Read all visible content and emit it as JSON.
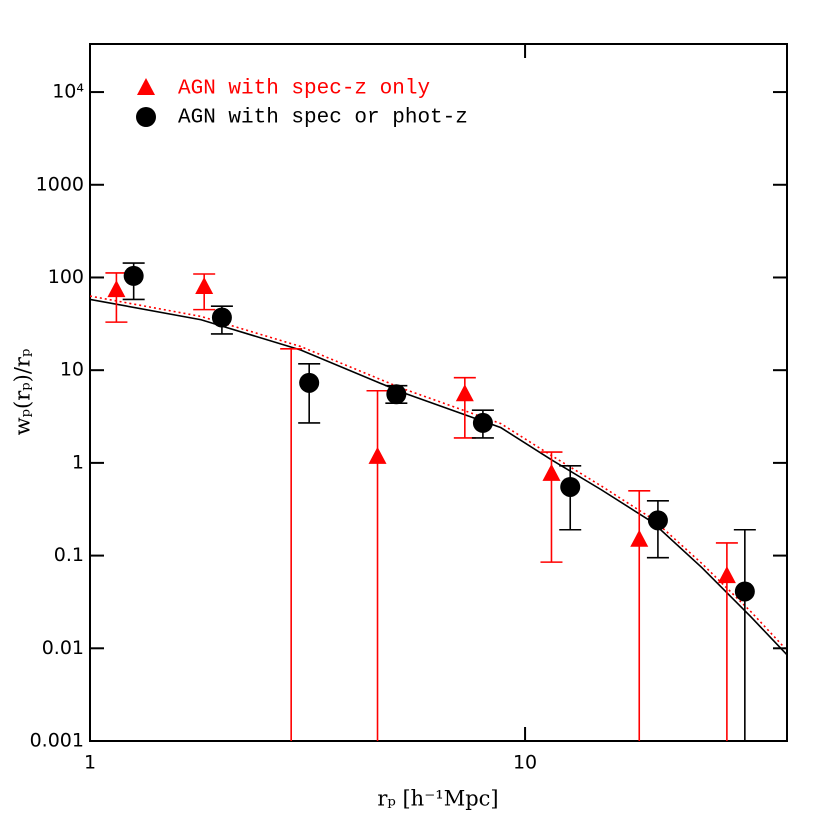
{
  "chart_data": {
    "type": "scatter",
    "xlabel": "rₚ [h⁻¹Mpc]",
    "ylabel": "wₚ(rₚ)/rₚ",
    "xscale": "log",
    "yscale": "log",
    "xlim": [
      1,
      40
    ],
    "ylim": [
      0.001,
      33000
    ],
    "xticks": [
      1,
      10
    ],
    "yticks": [
      0.001,
      0.01,
      0.1,
      1,
      10,
      100,
      1000,
      {
        "value": 10000,
        "label": "10⁴"
      }
    ],
    "legend": "upper left",
    "series": [
      {
        "name": "AGN with spec-z only",
        "color": "#ff0000",
        "marker": "triangle",
        "x": [
          1.15,
          1.83,
          2.9,
          4.58,
          7.27,
          11.5,
          18.3,
          29.1
        ],
        "values": [
          73,
          79,
          null,
          1.16,
          5.5,
          0.76,
          0.148,
          0.06
        ],
        "lower": [
          33,
          45,
          null,
          null,
          1.86,
          0.085,
          null,
          null
        ],
        "upper": [
          112,
          109,
          17,
          6,
          8.3,
          1.31,
          0.5,
          0.137
        ]
      },
      {
        "name": "AGN with spec or phot-z",
        "color": "#000000",
        "marker": "circle",
        "x": [
          1.26,
          2.01,
          3.19,
          5.06,
          8.0,
          12.7,
          20.2,
          32
        ],
        "values": [
          104,
          37,
          7.3,
          5.5,
          2.7,
          0.55,
          0.24,
          0.041
        ],
        "lower": [
          58,
          24.6,
          2.7,
          4.4,
          1.86,
          0.19,
          0.095,
          null
        ],
        "upper": [
          143,
          49,
          11.7,
          6.8,
          3.7,
          0.93,
          0.39,
          0.19
        ]
      }
    ],
    "lines": [
      {
        "color": "#000000",
        "style": "solid",
        "x": [
          1,
          1.8,
          3.05,
          5.2,
          8.8,
          11.5,
          15,
          19.6,
          25.5,
          33,
          40
        ],
        "values": [
          58,
          35,
          16.5,
          5.8,
          2.4,
          1.08,
          0.51,
          0.23,
          0.074,
          0.022,
          0.0085
        ]
      },
      {
        "color": "#ff0000",
        "style": "dotted",
        "x": [
          1,
          1.8,
          3.05,
          5.2,
          8.8,
          11.5,
          15,
          19.6,
          25.5,
          33,
          40
        ],
        "values": [
          63,
          38,
          18,
          6.4,
          2.65,
          1.2,
          0.56,
          0.25,
          0.082,
          0.025,
          0.0095
        ]
      }
    ]
  }
}
